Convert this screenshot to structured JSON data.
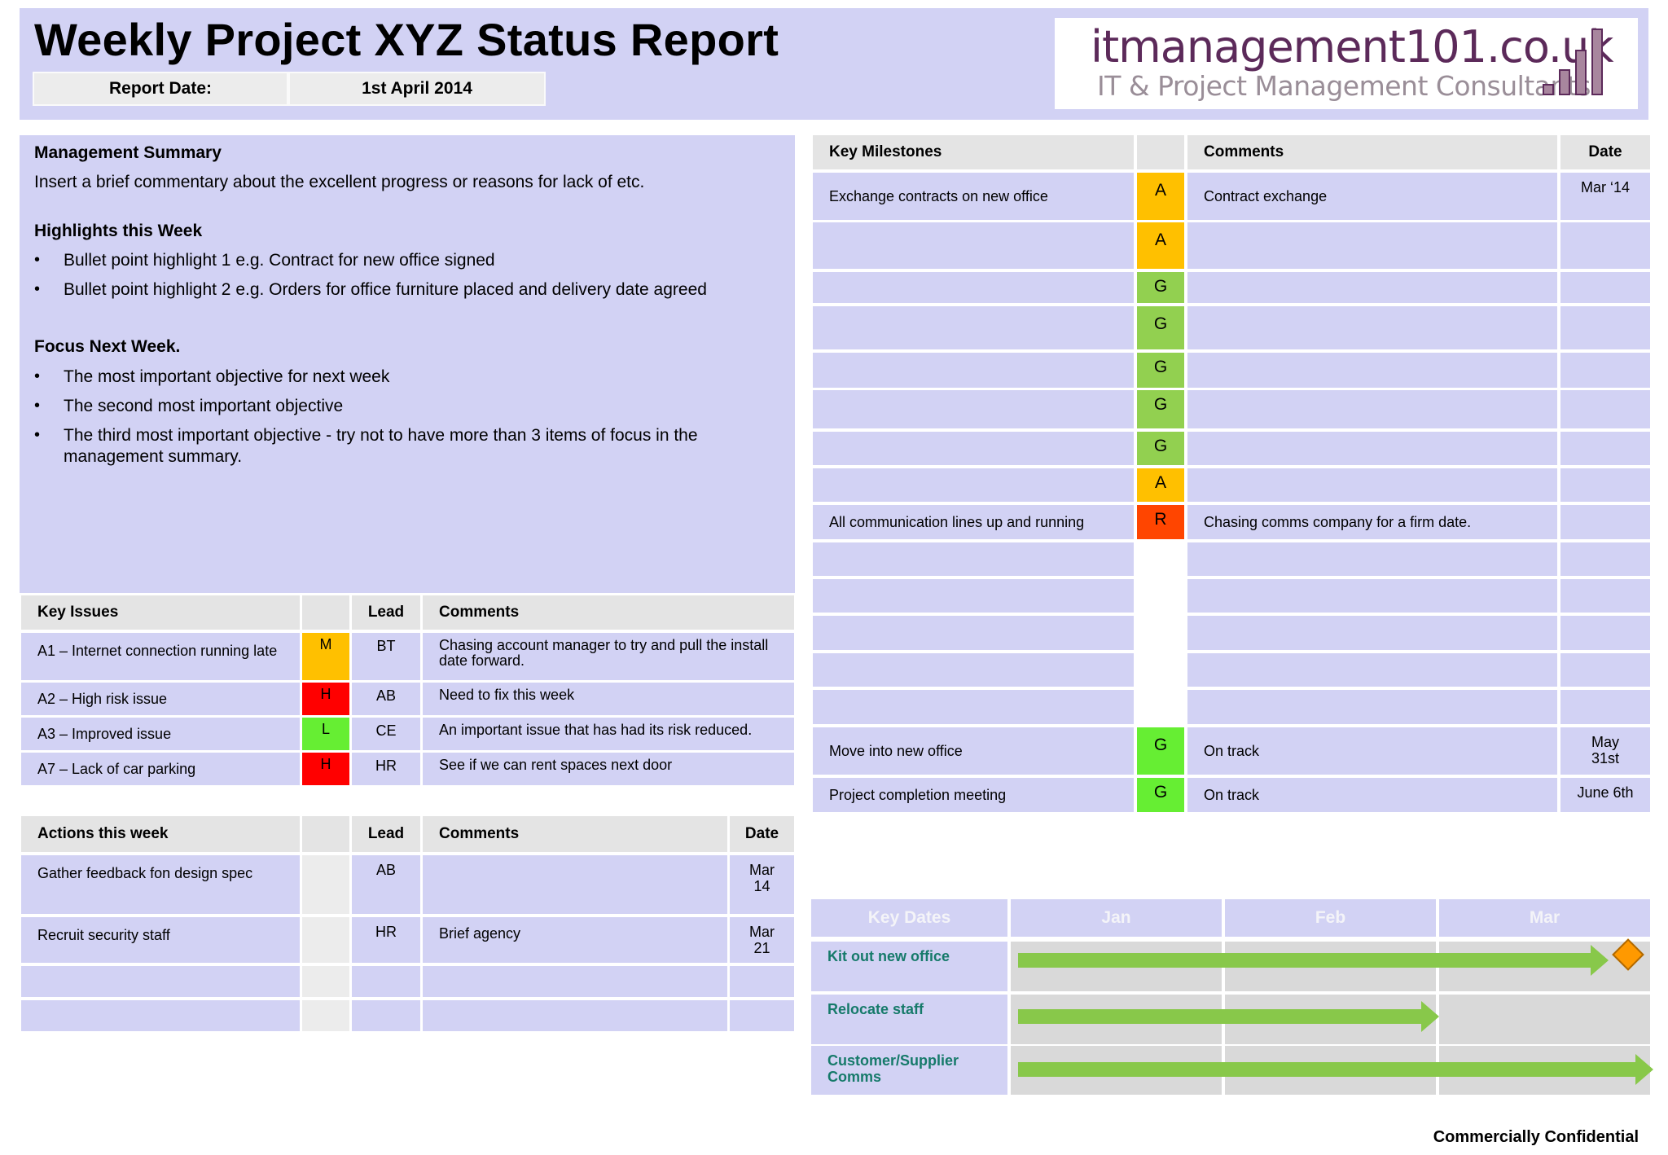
{
  "header": {
    "title": "Weekly Project XYZ Status Report",
    "report_date_label": "Report Date:",
    "report_date_value": "1st April 2014"
  },
  "logo": {
    "main": "itmanagement101.co.uk",
    "sub": "IT & Project Management Consultants"
  },
  "summary": {
    "heading": "Management Summary",
    "text": "Insert a brief commentary about the excellent  progress or reasons for lack of etc.",
    "highlights_heading": "Highlights this Week",
    "highlights": [
      "Bullet point highlight 1 e.g. Contract for new office signed",
      "Bullet point highlight 2 e.g. Orders for office furniture placed and delivery date agreed"
    ],
    "focus_heading": "Focus Next Week.",
    "focus": [
      "The most important objective for next week",
      "The second most important objective",
      "The third most important objective  - try not to have more than 3 items of focus in the management summary."
    ],
    "bullet_char": "•"
  },
  "key_issues": {
    "headers": {
      "issue": "Key Issues",
      "lead": "Lead",
      "comments": "Comments"
    },
    "rows": [
      {
        "issue": "A1 – Internet connection running late",
        "rag": "M",
        "rag_color": "#ffc000",
        "lead": "BT",
        "comments": "Chasing account manager to try and pull the install date forward."
      },
      {
        "issue": "A2 – High risk issue",
        "rag": "H",
        "rag_color": "#ff0000",
        "lead": "AB",
        "comments": "Need to fix this week"
      },
      {
        "issue": "A3 – Improved issue",
        "rag": "L",
        "rag_color": "#66ee33",
        "lead": "CE",
        "comments": "An important issue that has had its risk reduced."
      },
      {
        "issue": "A7 – Lack of car parking",
        "rag": "H",
        "rag_color": "#ff0000",
        "lead": "HR",
        "comments": "See if we can rent spaces next door"
      }
    ]
  },
  "actions": {
    "headers": {
      "action": "Actions this week",
      "lead": "Lead",
      "comments": "Comments",
      "date": "Date"
    },
    "rows": [
      {
        "action": "Gather feedback fon design spec",
        "lead": "AB",
        "comments": "",
        "date": "Mar\n14"
      },
      {
        "action": "Recruit security staff",
        "lead": "HR",
        "comments": "Brief agency",
        "date": "Mar\n21"
      },
      {
        "action": "",
        "lead": "",
        "comments": "",
        "date": ""
      },
      {
        "action": "",
        "lead": "",
        "comments": "",
        "date": ""
      }
    ]
  },
  "milestones": {
    "headers": {
      "milestone": "Key Milestones",
      "comments": "Comments",
      "date": "Date"
    },
    "rows": [
      {
        "milestone": "Exchange contracts on new office",
        "rag": "A",
        "rag_color": "#ffc000",
        "comments": "Contract exchange",
        "date": "Mar ‘14"
      },
      {
        "milestone": "",
        "rag": "A",
        "rag_color": "#ffc000",
        "comments": "",
        "date": ""
      },
      {
        "milestone": "",
        "rag": "G",
        "rag_color": "#92d050",
        "comments": "",
        "date": ""
      },
      {
        "milestone": "",
        "rag": "G",
        "rag_color": "#92d050",
        "comments": "",
        "date": ""
      },
      {
        "milestone": "",
        "rag": "G",
        "rag_color": "#92d050",
        "comments": "",
        "date": ""
      },
      {
        "milestone": "",
        "rag": "G",
        "rag_color": "#92d050",
        "comments": "",
        "date": ""
      },
      {
        "milestone": "",
        "rag": "G",
        "rag_color": "#92d050",
        "comments": "",
        "date": ""
      },
      {
        "milestone": "",
        "rag": "A",
        "rag_color": "#ffc000",
        "comments": "",
        "date": ""
      },
      {
        "milestone": "All communication lines up and running",
        "rag": "R",
        "rag_color": "#ff4500",
        "comments": "Chasing comms company for a firm date.",
        "date": ""
      },
      {
        "milestone": "",
        "rag": "",
        "rag_color": "#ffffff",
        "comments": "",
        "date": ""
      },
      {
        "milestone": "",
        "rag": "",
        "rag_color": "#ffffff",
        "comments": "",
        "date": ""
      },
      {
        "milestone": "",
        "rag": "",
        "rag_color": "#ffffff",
        "comments": "",
        "date": ""
      },
      {
        "milestone": "",
        "rag": "",
        "rag_color": "#ffffff",
        "comments": "",
        "date": ""
      },
      {
        "milestone": "",
        "rag": "",
        "rag_color": "#ffffff",
        "comments": "",
        "date": ""
      },
      {
        "milestone": "Move into new office",
        "rag": "G",
        "rag_color": "#66ee33",
        "comments": "On track",
        "date": "May\n31st"
      },
      {
        "milestone": "Project completion meeting",
        "rag": "G",
        "rag_color": "#66ee33",
        "comments": "On track",
        "date": "June 6th"
      }
    ]
  },
  "key_dates": {
    "headers": [
      "Key Dates",
      "Jan",
      "Feb",
      "Mar"
    ],
    "rows": [
      {
        "label": "Kit out new office",
        "end_month_fraction": 2.79,
        "milestone_marker": true
      },
      {
        "label": "Relocate staff",
        "end_month_fraction": 2.0,
        "milestone_marker": false
      },
      {
        "label": "Customer/Supplier Comms",
        "end_month_fraction": 3.0,
        "milestone_marker": false
      }
    ],
    "marker_color": "#ff9900"
  },
  "footer": {
    "text": "Commercially Confidential"
  },
  "colors": {
    "lavender": "#d2d2f4",
    "header_grey": "#e4e4e4",
    "gantt_green": "#88c84a",
    "logo_purple": "#5c2a5a"
  }
}
